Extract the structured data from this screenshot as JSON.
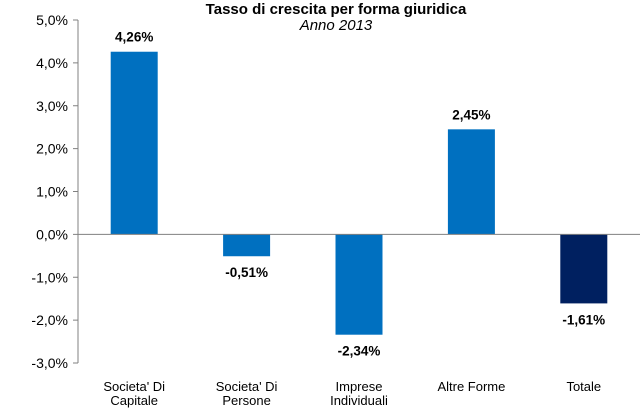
{
  "chart_data": {
    "type": "bar",
    "title": "Tasso di crescita  per forma giuridica",
    "subtitle": "Anno 2013",
    "categories": [
      [
        "Societa' Di",
        "Capitale"
      ],
      [
        "Societa' Di",
        "Persone"
      ],
      [
        "Imprese",
        "Individuali"
      ],
      [
        "Altre Forme"
      ],
      [
        "Totale"
      ]
    ],
    "values": [
      4.26,
      -0.51,
      -2.34,
      2.45,
      -1.61
    ],
    "data_labels": [
      "4,26%",
      "-0,51%",
      "-2,34%",
      "2,45%",
      "-1,61%"
    ],
    "bar_colors": [
      "#0070c0",
      "#0070c0",
      "#0070c0",
      "#0070c0",
      "#002060"
    ],
    "ylim": [
      -3,
      5
    ],
    "yticks": [
      5,
      4,
      3,
      2,
      1,
      0,
      -1,
      -2,
      -3
    ],
    "ytick_labels": [
      "5,0%",
      "4,0%",
      "3,0%",
      "2,0%",
      "1,0%",
      "0,0%",
      "-1,0%",
      "-2,0%",
      "-3,0%"
    ],
    "grid": false,
    "legend": "none",
    "axis_color": "#808080"
  }
}
